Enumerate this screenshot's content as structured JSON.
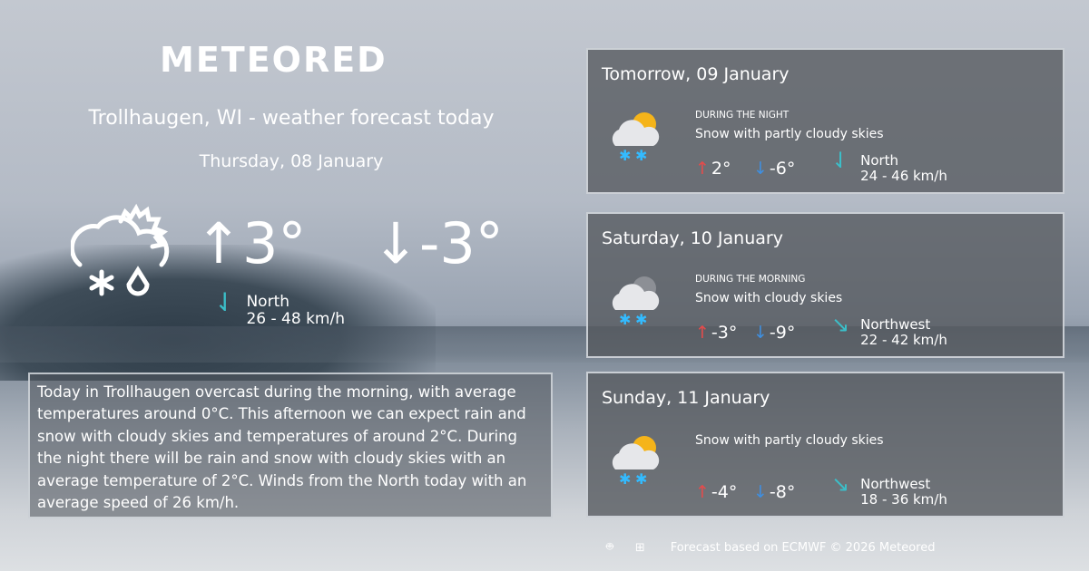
{
  "logo": "METEORED",
  "title": "Trollhaugen, WI - weather forecast today",
  "date": "Thursday, 08 January",
  "today": {
    "icon": "snow-rain-partly-cloudy-icon",
    "max": "3°",
    "min": "-3°",
    "wind_dir": "North",
    "wind_speed": "26 - 48 km/h"
  },
  "description": "Today in Trollhaugen overcast during the morning, with average temperatures around 0°C. This afternoon we can expect rain and snow with cloudy skies and temperatures of around 2°C. During the night there will be rain and snow with cloudy skies with an average temperature of 2°C. Winds from the North today with an average speed of 26 km/h.",
  "forecast": [
    {
      "day": "Tomorrow, 09 January",
      "period": "DURING THE NIGHT",
      "summary": "Snow with partly cloudy skies",
      "max": "2°",
      "min": "-6°",
      "wind_dir": "North",
      "wind_speed": "24 - 46 km/h",
      "icon": "snow-partly-cloudy-icon"
    },
    {
      "day": "Saturday, 10 January",
      "period": "DURING THE MORNING",
      "summary": "Snow with cloudy skies",
      "max": "-3°",
      "min": "-9°",
      "wind_dir": "Northwest",
      "wind_speed": "22 - 42 km/h",
      "icon": "snow-cloudy-icon"
    },
    {
      "day": "Sunday, 11 January",
      "period": "",
      "summary": "Snow with partly cloudy skies",
      "max": "-4°",
      "min": "-8°",
      "wind_dir": "Northwest",
      "wind_speed": "18 - 36 km/h",
      "icon": "snow-partly-cloudy-icon"
    }
  ],
  "footer": {
    "text": "Forecast based on ECMWF © 2026 Meteored",
    "icons": [
      "android-icon",
      "apple-icon",
      "windows-icon"
    ]
  },
  "colors": {
    "max": "#e54b4b",
    "min": "#3f8fe0",
    "wind": "#3bbfc9"
  }
}
